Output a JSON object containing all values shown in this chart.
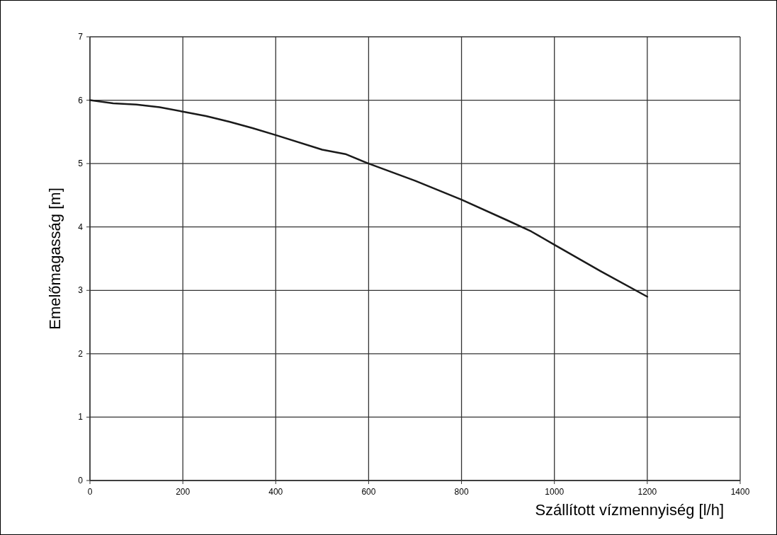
{
  "chart_data": {
    "type": "line",
    "xlabel": "Szállított vízmennyiség [l/h]",
    "ylabel": "Emelőmagasság [m]",
    "x": [
      0,
      50,
      100,
      150,
      200,
      250,
      300,
      350,
      400,
      500,
      550,
      600,
      700,
      800,
      900,
      950,
      1000,
      1100,
      1200
    ],
    "series": [
      {
        "color": "#1a1a1a",
        "values": [
          6.0,
          5.95,
          5.93,
          5.89,
          5.82,
          5.75,
          5.66,
          5.56,
          5.45,
          5.22,
          5.15,
          5.0,
          4.73,
          4.43,
          4.1,
          3.93,
          3.72,
          3.3,
          2.9
        ]
      }
    ],
    "xlim": [
      0,
      1400
    ],
    "xticks": [
      0,
      200,
      400,
      600,
      800,
      1000,
      1200,
      1400
    ],
    "ylim": [
      0,
      7
    ],
    "yticks": [
      0,
      1,
      2,
      3,
      4,
      5,
      6,
      7
    ],
    "grid": true,
    "marker": "none",
    "line_style": "solid"
  }
}
